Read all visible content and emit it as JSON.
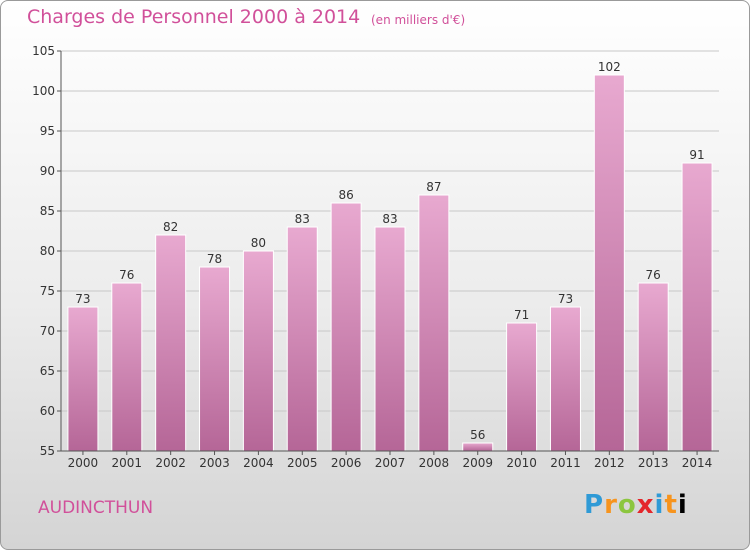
{
  "header": {
    "title": "Charges de Personnel 2000 à 2014",
    "subtitle": "(en milliers d'€)"
  },
  "footer": {
    "commune": "AUDINCTHUN",
    "logo": "Proxiti"
  },
  "colors": {
    "title": "#d1509a",
    "bar_top": "#e8a9d0",
    "bar_bottom": "#b56697",
    "bar_edge": "#ffffff"
  },
  "chart_data": {
    "type": "bar",
    "title": "Charges de Personnel 2000 à 2014",
    "subtitle": "(en milliers d'€)",
    "categories": [
      "2000",
      "2001",
      "2002",
      "2003",
      "2004",
      "2005",
      "2006",
      "2007",
      "2008",
      "2009",
      "2010",
      "2011",
      "2012",
      "2013",
      "2014"
    ],
    "values": [
      73,
      76,
      82,
      78,
      80,
      83,
      86,
      83,
      87,
      56,
      71,
      73,
      102,
      76,
      91
    ],
    "ylim": [
      55,
      105
    ],
    "yticks": [
      55,
      60,
      65,
      70,
      75,
      80,
      85,
      90,
      95,
      100,
      105
    ],
    "grid": true,
    "xlabel": "",
    "ylabel": ""
  }
}
